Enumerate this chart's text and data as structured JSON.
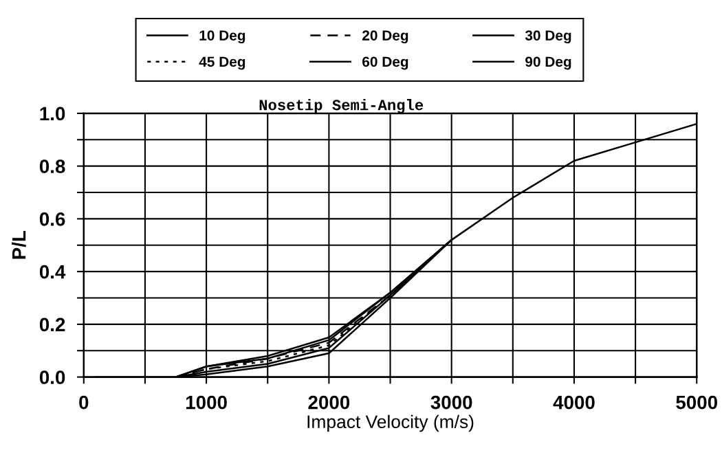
{
  "chart_data": {
    "type": "line",
    "title": "Nosetip Semi-Angle",
    "xlabel": "Impact Velocity (m/s)",
    "ylabel": "P/L",
    "x": [
      100,
      750,
      1000,
      1500,
      2000,
      2500,
      3000,
      3500,
      4000,
      4500,
      5000
    ],
    "series": [
      {
        "name": "10 Deg",
        "color": "#000000",
        "line_style": "solid",
        "values": [
          null,
          0,
          0.04,
          0.08,
          0.15,
          0.32,
          0.52,
          null,
          null,
          null,
          null
        ]
      },
      {
        "name": "20 Deg",
        "color": "#000000",
        "line_style": "dashed",
        "values": [
          null,
          0,
          0.03,
          0.07,
          0.13,
          0.31,
          0.52,
          null,
          null,
          null,
          null
        ]
      },
      {
        "name": "30 Deg",
        "color": "#000000",
        "line_style": "solid",
        "values": [
          null,
          0,
          0.04,
          0.07,
          0.14,
          0.32,
          0.52,
          null,
          null,
          null,
          null
        ]
      },
      {
        "name": "45 Deg",
        "color": "#000000",
        "line_style": "dotted",
        "values": [
          null,
          0,
          0.03,
          0.06,
          0.12,
          0.31,
          0.52,
          null,
          null,
          null,
          null
        ]
      },
      {
        "name": "60 Deg",
        "color": "#000000",
        "line_style": "solid",
        "values": [
          null,
          0,
          0.02,
          0.05,
          0.11,
          0.31,
          0.52,
          null,
          null,
          null,
          null
        ]
      },
      {
        "name": "90 Deg",
        "color": "#000000",
        "line_style": "solid",
        "values": [
          0,
          0,
          0.01,
          0.04,
          0.09,
          0.3,
          0.52,
          0.68,
          0.82,
          0.89,
          0.96
        ]
      }
    ],
    "xlim": [
      0,
      5000
    ],
    "ylim": [
      0,
      1
    ],
    "xticks": [
      0,
      {
        "value": 500,
        "label": null
      },
      1000,
      {
        "value": 1500,
        "label": null
      },
      2000,
      {
        "value": 2500,
        "label": null
      },
      3000,
      {
        "value": 3500,
        "label": null
      },
      4000,
      {
        "value": 4500,
        "label": null
      },
      5000
    ],
    "yticks": [
      {
        "value": 0,
        "label": "0.0"
      },
      {
        "value": 0.1,
        "label": null
      },
      0.2,
      {
        "value": 0.3,
        "label": null
      },
      0.4,
      {
        "value": 0.5,
        "label": null
      },
      0.6,
      {
        "value": 0.7,
        "label": null
      },
      0.8,
      {
        "value": 0.9,
        "label": null
      },
      {
        "value": 1,
        "label": "1.0"
      }
    ],
    "grid": true,
    "legend": "top"
  }
}
